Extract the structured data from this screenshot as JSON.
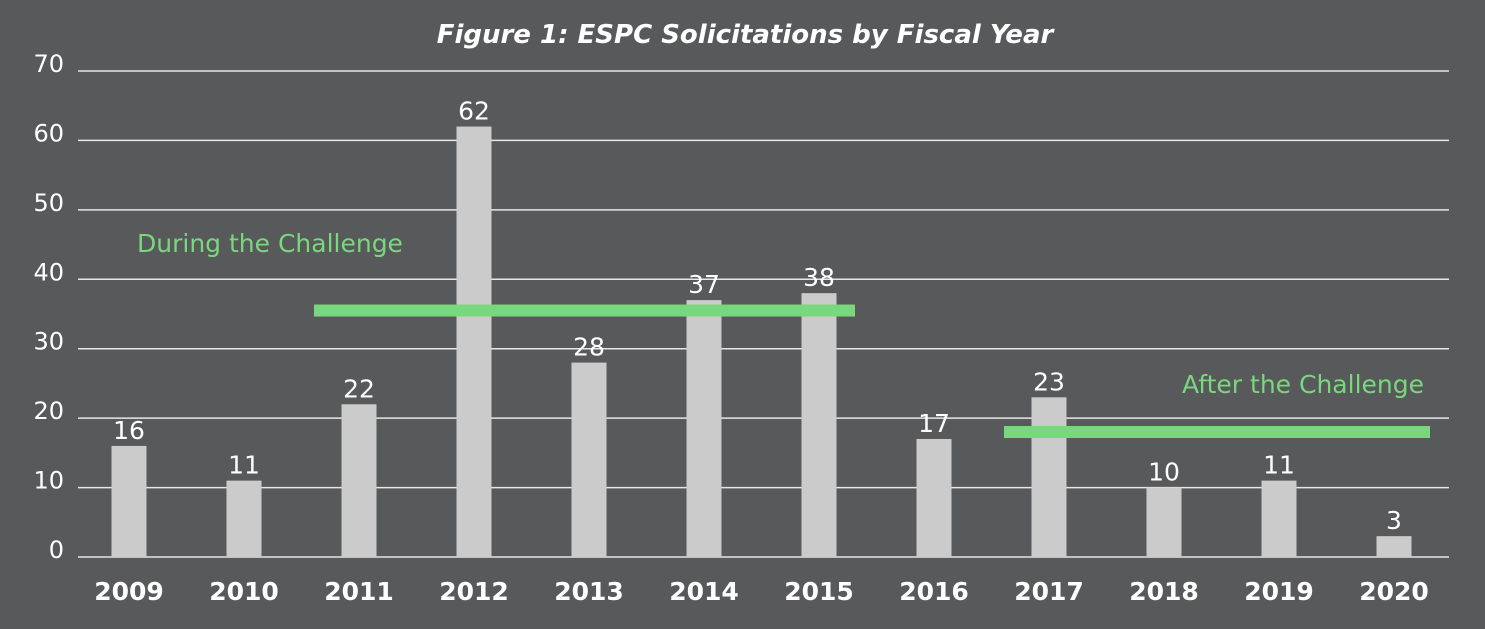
{
  "chart_data": {
    "type": "bar",
    "title": "Figure 1: ESPC Solicitations by Fiscal Year",
    "xlabel": "",
    "ylabel": "",
    "categories": [
      "2009",
      "2010",
      "2011",
      "2012",
      "2013",
      "2014",
      "2015",
      "2016",
      "2017",
      "2018",
      "2019",
      "2020"
    ],
    "values": [
      16,
      11,
      22,
      62,
      28,
      37,
      38,
      17,
      23,
      10,
      11,
      3
    ],
    "ylim": [
      0,
      70
    ],
    "yticks": [
      0,
      10,
      20,
      30,
      40,
      50,
      60,
      70
    ],
    "grid": true,
    "data_labels": true,
    "annotations": [
      {
        "text": "During the Challenge",
        "level": 35.5,
        "from": "2011",
        "to": "2015"
      },
      {
        "text": "After the Challenge",
        "level": 18,
        "from": "2017",
        "to": "2020"
      }
    ]
  },
  "colors": {
    "background": "#58595b",
    "bars": "#cbcbcb",
    "annotation": "#79d77d",
    "gridlines": "#e6e6e6",
    "text": "#ffffff"
  }
}
